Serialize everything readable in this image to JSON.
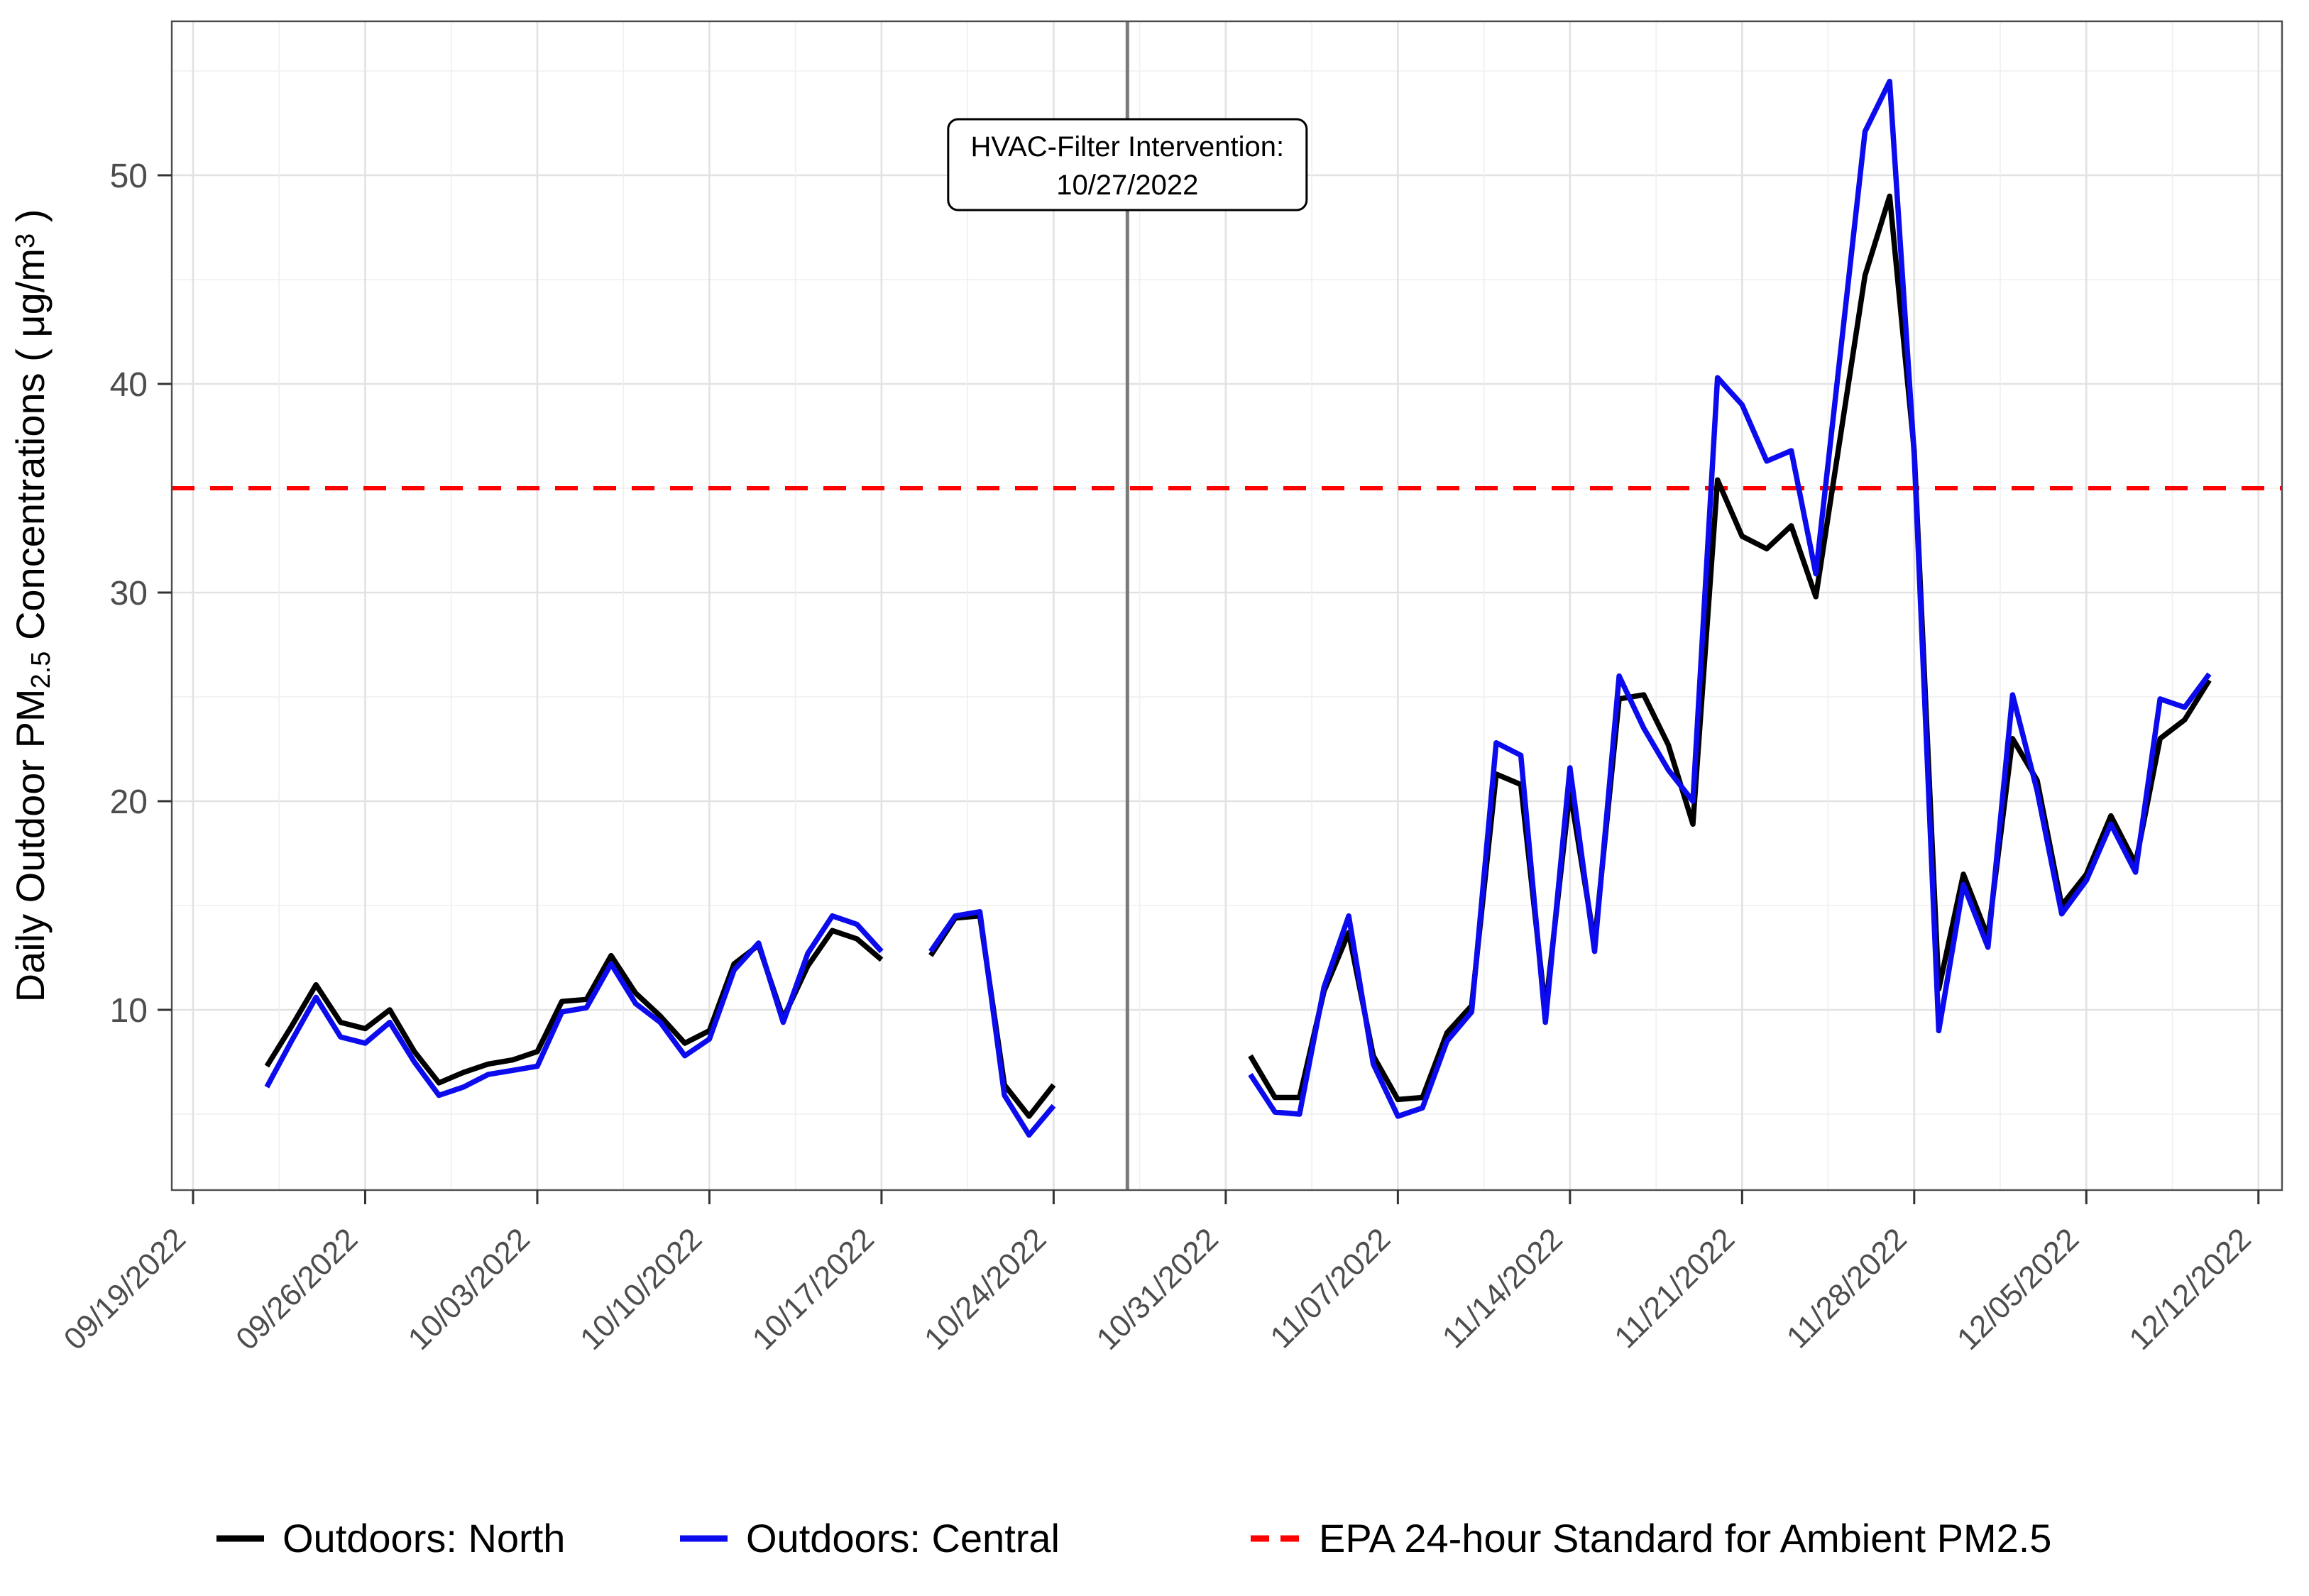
{
  "chart_data": {
    "type": "line",
    "title": "",
    "xlabel": "",
    "ylabel": "Daily Outdoor PM2.5 Concentrations ( μg/m³ )",
    "ylabel_parts": [
      {
        "t": "Daily Outdoor PM"
      },
      {
        "t": "2.5",
        "style": "sub"
      },
      {
        "t": " Concentrations  ( μg/m"
      },
      {
        "t": "3",
        "style": "sup"
      },
      {
        "t": " )"
      }
    ],
    "x_tick_labels": [
      "09/19/2022",
      "09/26/2022",
      "10/03/2022",
      "10/10/2022",
      "10/17/2022",
      "10/24/2022",
      "10/31/2022",
      "11/07/2022",
      "11/14/2022",
      "11/21/2022",
      "11/28/2022",
      "12/05/2022",
      "12/12/2022"
    ],
    "y_ticks": [
      10,
      20,
      30,
      40,
      50
    ],
    "y_minor_ticks": [
      5,
      15,
      25,
      35,
      45,
      55
    ],
    "ylim_approx": [
      1.4,
      57.4
    ],
    "grid": "on",
    "legend_position": "bottom",
    "series_meta": [
      {
        "name": "Outdoors: North",
        "color": "#000000",
        "dash": "solid"
      },
      {
        "name": "Outdoors: Central",
        "color": "#0B0BEE",
        "dash": "solid"
      }
    ],
    "segments": [
      {
        "dates": [
          "09/22/2022",
          "09/23/2022",
          "09/24/2022",
          "09/25/2022",
          "09/26/2022",
          "09/27/2022",
          "09/28/2022",
          "09/29/2022",
          "09/30/2022",
          "10/01/2022",
          "10/02/2022",
          "10/03/2022",
          "10/04/2022",
          "10/05/2022",
          "10/06/2022",
          "10/07/2022",
          "10/08/2022",
          "10/09/2022",
          "10/10/2022",
          "10/11/2022",
          "10/12/2022",
          "10/13/2022",
          "10/14/2022",
          "10/15/2022",
          "10/16/2022",
          "10/17/2022"
        ],
        "north": [
          7.3,
          9.2,
          11.2,
          9.4,
          9.1,
          10.0,
          8.0,
          6.5,
          7.0,
          7.4,
          7.6,
          8.0,
          10.4,
          10.5,
          12.6,
          10.8,
          9.7,
          8.4,
          9.0,
          12.2,
          13.1,
          9.6,
          12.1,
          13.8,
          13.4,
          12.4
        ],
        "central": [
          6.3,
          8.5,
          10.6,
          8.7,
          8.4,
          9.4,
          7.5,
          5.9,
          6.3,
          6.9,
          7.1,
          7.3,
          9.9,
          10.1,
          12.2,
          10.3,
          9.4,
          7.8,
          8.6,
          11.9,
          13.2,
          9.4,
          12.7,
          14.5,
          14.1,
          12.8
        ]
      },
      {
        "dates": [
          "10/19/2022",
          "10/20/2022",
          "10/21/2022",
          "10/22/2022",
          "10/23/2022",
          "10/24/2022"
        ],
        "north": [
          12.6,
          14.4,
          14.5,
          6.4,
          4.9,
          6.4
        ],
        "central": [
          12.8,
          14.5,
          14.7,
          5.9,
          4.0,
          5.4
        ]
      },
      {
        "dates": [
          "11/01/2022",
          "11/02/2022",
          "11/03/2022",
          "11/04/2022",
          "11/05/2022",
          "11/06/2022",
          "11/07/2022",
          "11/08/2022",
          "11/09/2022",
          "11/10/2022",
          "11/11/2022",
          "11/12/2022",
          "11/13/2022",
          "11/14/2022",
          "11/15/2022",
          "11/16/2022",
          "11/17/2022",
          "11/18/2022",
          "11/19/2022",
          "11/20/2022",
          "11/21/2022",
          "11/22/2022",
          "11/23/2022",
          "11/24/2022",
          "11/25/2022",
          "11/26/2022",
          "11/27/2022",
          "11/28/2022",
          "11/29/2022",
          "11/30/2022",
          "12/01/2022",
          "12/02/2022",
          "12/03/2022",
          "12/04/2022",
          "12/05/2022",
          "12/06/2022",
          "12/07/2022",
          "12/08/2022",
          "12/09/2022",
          "12/10/2022"
        ],
        "north": [
          7.8,
          5.8,
          5.8,
          10.9,
          13.7,
          7.8,
          5.7,
          5.8,
          8.9,
          10.2,
          21.3,
          20.8,
          10.0,
          20.5,
          13.2,
          24.9,
          25.1,
          22.7,
          18.9,
          35.4,
          32.7,
          32.1,
          33.2,
          29.8,
          37.5,
          45.2,
          49.0,
          36.8,
          11.0,
          16.5,
          13.5,
          23.0,
          21.0,
          15.0,
          16.5,
          19.3,
          17.0,
          23.0,
          23.9,
          25.8
        ],
        "central": [
          6.9,
          5.1,
          5.0,
          11.1,
          14.5,
          7.4,
          4.9,
          5.3,
          8.5,
          9.9,
          22.8,
          22.2,
          9.4,
          21.6,
          12.8,
          26.0,
          23.5,
          21.5,
          20.0,
          40.3,
          39.0,
          36.3,
          36.8,
          30.9,
          41.5,
          52.1,
          54.5,
          36.6,
          9.0,
          16.0,
          13.0,
          25.1,
          20.5,
          14.6,
          16.2,
          18.9,
          16.6,
          24.9,
          24.5,
          26.1
        ]
      }
    ],
    "reference_line": {
      "label": "EPA 24-hour Standard for Ambient PM2.5",
      "value": 35,
      "color": "#FF0000",
      "style": "dashed"
    },
    "event_line": {
      "date": "10/27/2022",
      "color": "#7A7A7A"
    },
    "annotation": {
      "line1": "HVAC-Filter Intervention:",
      "line2": "10/27/2022"
    }
  },
  "legend": {
    "items": [
      {
        "label": "Outdoors: North",
        "color": "#000000",
        "dash": "solid"
      },
      {
        "label": "Outdoors: Central",
        "color": "#0B0BEE",
        "dash": "solid"
      },
      {
        "label": "EPA 24-hour Standard for Ambient PM2.5",
        "color": "#FF0000",
        "dash": "dashed"
      }
    ]
  }
}
